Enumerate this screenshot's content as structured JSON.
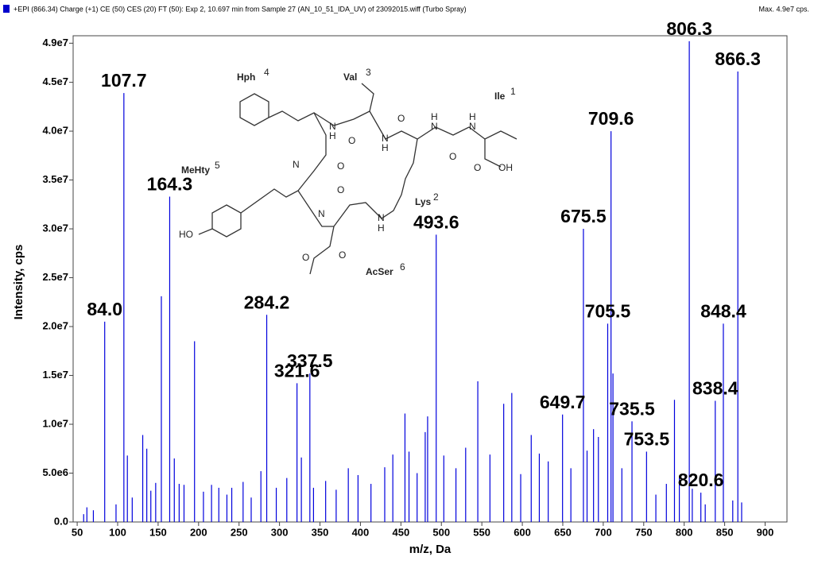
{
  "header": {
    "title": "+EPI (866.34) Charge (+1) CE (50) CES (20) FT (50): Exp 2, 10.697 min from Sample 27 (AN_10_51_IDA_UV) of 23092015.wiff (Turbo Spray)",
    "max": "Max. 4.9e7 cps."
  },
  "structure": {
    "residues": [
      {
        "text": "Hph",
        "sup": "4"
      },
      {
        "text": "Val",
        "sup": "3"
      },
      {
        "text": "Ile",
        "sup": "1"
      },
      {
        "text": "MeHty",
        "sup": "5"
      },
      {
        "text": "Lys",
        "sup": "2"
      },
      {
        "text": "AcSer",
        "sup": "6"
      }
    ],
    "atoms": [
      "N",
      "H",
      "O",
      "N",
      "H",
      "O",
      "N",
      "H",
      "N",
      "H",
      "O",
      "O",
      "OH",
      "N",
      "O",
      "O",
      "N",
      "H",
      "HO",
      "N",
      "O",
      "O"
    ]
  },
  "chart_data": {
    "type": "stem",
    "xlabel": "m/z, Da",
    "ylabel": "Intensity, cps",
    "color": "#0000dd",
    "xlim": [
      45,
      927
    ],
    "xticks": [
      50,
      100,
      150,
      200,
      250,
      300,
      350,
      400,
      450,
      500,
      550,
      600,
      650,
      700,
      750,
      800,
      850,
      900
    ],
    "ylim": [
      0,
      49600000
    ],
    "yticks": [
      {
        "value": 0,
        "label": "0.0"
      },
      {
        "value": 5000000,
        "label": "5.0e6"
      },
      {
        "value": 10000000,
        "label": "1.0e7"
      },
      {
        "value": 15000000,
        "label": "1.5e7"
      },
      {
        "value": 20000000,
        "label": "2.0e7"
      },
      {
        "value": 25000000,
        "label": "2.5e7"
      },
      {
        "value": 30000000,
        "label": "3.0e7"
      },
      {
        "value": 35000000,
        "label": "3.5e7"
      },
      {
        "value": 40000000,
        "label": "4.0e7"
      },
      {
        "value": 45000000,
        "label": "4.5e7"
      },
      {
        "value": 49000000,
        "label": "4.9e7"
      }
    ],
    "series": [
      {
        "name": "labeled",
        "x": [
          84.0,
          107.7,
          164.3,
          284.2,
          321.6,
          337.5,
          493.6,
          649.7,
          675.5,
          705.5,
          709.6,
          735.5,
          753.5,
          806.3,
          820.6,
          838.4,
          848.4,
          866.3
        ],
        "labels": [
          "84.0",
          "107.7",
          "164.3",
          "284.2",
          "321.6",
          "337.5",
          "493.6",
          "649.7",
          "675.5",
          "705.5",
          "709.6",
          "735.5",
          "753.5",
          "806.3",
          "820.6",
          "838.4",
          "848.4",
          "866.3"
        ],
        "values": [
          20500000.0,
          43900000.0,
          33300000.0,
          21200000.0,
          14200000.0,
          15200000.0,
          29400000.0,
          11000000.0,
          30000000.0,
          20300000.0,
          40000000.0,
          10300000.0,
          7200000.0,
          49200000.0,
          3000000.0,
          12400000.0,
          20300000.0,
          46100000.0
        ]
      },
      {
        "name": "other",
        "x": [
          58,
          62,
          70,
          98,
          112,
          118,
          131,
          136,
          141,
          147,
          154,
          170,
          176,
          182,
          195,
          206,
          216,
          225,
          235,
          241,
          255,
          265,
          277,
          296,
          309,
          327,
          342,
          357,
          370,
          385,
          397,
          413,
          430,
          440,
          455,
          460,
          470,
          480,
          483,
          503,
          518,
          530,
          545,
          560,
          577,
          587,
          598,
          611,
          621,
          632,
          660,
          680,
          688,
          694,
          712,
          723,
          765,
          778,
          788,
          794,
          810,
          826,
          860,
          871
        ],
        "values": [
          800000.0,
          1500000.0,
          1200000.0,
          1800000.0,
          6800000.0,
          2500000.0,
          8900000.0,
          7500000.0,
          3200000.0,
          4000000.0,
          23100000.0,
          6500000.0,
          3900000.0,
          3800000.0,
          18500000.0,
          3100000.0,
          3800000.0,
          3500000.0,
          2800000.0,
          3500000.0,
          4100000.0,
          2500000.0,
          5200000.0,
          3500000.0,
          4500000.0,
          6600000.0,
          3500000.0,
          4200000.0,
          3300000.0,
          5500000.0,
          4800000.0,
          3900000.0,
          5600000.0,
          6900000.0,
          11100000.0,
          7200000.0,
          5000000.0,
          9200000.0,
          10800000.0,
          6800000.0,
          5500000.0,
          7600000.0,
          14400000.0,
          6900000.0,
          12100000.0,
          13200000.0,
          4900000.0,
          8900000.0,
          7000000.0,
          6200000.0,
          5500000.0,
          7300000.0,
          9500000.0,
          8700000.0,
          15200000.0,
          5500000.0,
          2800000.0,
          3900000.0,
          12500000.0,
          4700000.0,
          3400000.0,
          1800000.0,
          2200000.0,
          2000000.0
        ]
      }
    ]
  }
}
